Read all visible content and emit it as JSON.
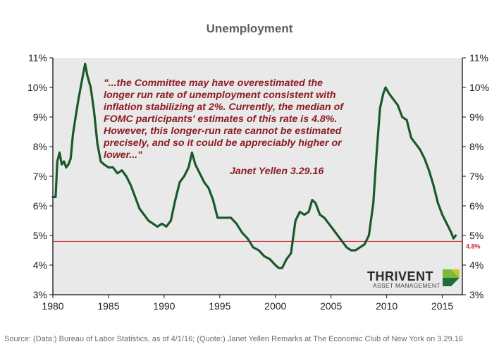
{
  "colors": {
    "line": "#1a5a2a",
    "reference": "#c4262e",
    "quote": "#8c1c22",
    "plot_background": "#e9e9ea"
  },
  "logo": {
    "name": "THRIVENT",
    "subtitle": "ASSET MANAGEMENT"
  },
  "source_text": "Source: (Data:) Bureau of Labor Statistics, as of 4/1/16;  (Quote:) Janet Yellen Remarks at The Economic Club of New York on 3.29.16",
  "chart_data": {
    "type": "line",
    "title": "Unemployment",
    "xlabel": "",
    "ylabel": "",
    "xlim": [
      1980,
      2016.8
    ],
    "ylim": [
      3,
      11
    ],
    "x_ticks": [
      1980,
      1985,
      1990,
      1995,
      2000,
      2005,
      2010,
      2015
    ],
    "y_ticks": [
      "3%",
      "4%",
      "5%",
      "6%",
      "7%",
      "8%",
      "9%",
      "10%",
      "11%"
    ],
    "grid": false,
    "legend": "none",
    "reference_line": {
      "value": 4.8,
      "label": "4.8%"
    },
    "annotation": {
      "quote_lines": [
        "\"...the Committee may have overestimated the",
        "longer run rate of unemployment consistent with",
        "inflation stabilizing at 2%.  Currently, the median of",
        "FOMC participants' estimates of this rate is 4.8%.",
        "However, this longer-run rate cannot be estimated",
        "precisely, and so it could be appreciably higher or",
        "lower...\""
      ],
      "attribution": "Janet Yellen 3.29.16"
    },
    "series": [
      {
        "x": [
          1980.0,
          1980.25,
          1980.4,
          1980.6,
          1980.8,
          1981.0,
          1981.2,
          1981.4,
          1981.6,
          1981.8,
          1982.0,
          1982.3,
          1982.6,
          1982.9,
          1983.1,
          1983.4,
          1983.7,
          1984.0,
          1984.3,
          1984.6,
          1985.0,
          1985.4,
          1985.8,
          1986.2,
          1986.6,
          1987.0,
          1987.4,
          1987.8,
          1988.2,
          1988.6,
          1989.0,
          1989.4,
          1989.8,
          1990.2,
          1990.6,
          1991.0,
          1991.4,
          1991.8,
          1992.2,
          1992.5,
          1992.8,
          1993.2,
          1993.6,
          1994.0,
          1994.4,
          1994.8,
          1995.2,
          1995.6,
          1996.0,
          1996.5,
          1997.0,
          1997.5,
          1998.0,
          1998.5,
          1999.0,
          1999.5,
          2000.0,
          2000.3,
          2000.6,
          2001.0,
          2001.4,
          2001.8,
          2002.2,
          2002.6,
          2003.0,
          2003.3,
          2003.6,
          2004.0,
          2004.4,
          2004.8,
          2005.2,
          2005.6,
          2006.0,
          2006.4,
          2006.8,
          2007.2,
          2007.6,
          2008.0,
          2008.4,
          2008.8,
          2009.1,
          2009.4,
          2009.7,
          2009.9,
          2010.2,
          2010.6,
          2011.0,
          2011.4,
          2011.8,
          2012.2,
          2012.6,
          2013.0,
          2013.4,
          2013.8,
          2014.2,
          2014.6,
          2015.0,
          2015.4,
          2015.8,
          2016.0,
          2016.2
        ],
        "values": [
          6.3,
          6.3,
          7.5,
          7.8,
          7.4,
          7.5,
          7.3,
          7.4,
          7.6,
          8.4,
          8.9,
          9.6,
          10.2,
          10.8,
          10.4,
          10.0,
          9.2,
          8.1,
          7.5,
          7.4,
          7.3,
          7.3,
          7.1,
          7.2,
          7.0,
          6.7,
          6.3,
          5.9,
          5.7,
          5.5,
          5.4,
          5.3,
          5.4,
          5.3,
          5.5,
          6.2,
          6.8,
          7.0,
          7.3,
          7.8,
          7.4,
          7.1,
          6.8,
          6.6,
          6.2,
          5.6,
          5.6,
          5.6,
          5.6,
          5.4,
          5.1,
          4.9,
          4.6,
          4.5,
          4.3,
          4.2,
          4.0,
          3.9,
          3.9,
          4.2,
          4.4,
          5.5,
          5.8,
          5.7,
          5.8,
          6.2,
          6.1,
          5.7,
          5.6,
          5.4,
          5.2,
          5.0,
          4.8,
          4.6,
          4.5,
          4.5,
          4.6,
          4.7,
          5.0,
          6.1,
          7.8,
          9.3,
          9.8,
          10.0,
          9.8,
          9.6,
          9.4,
          9.0,
          8.9,
          8.3,
          8.1,
          7.9,
          7.6,
          7.2,
          6.7,
          6.1,
          5.7,
          5.4,
          5.1,
          4.9,
          5.0
        ]
      }
    ]
  }
}
